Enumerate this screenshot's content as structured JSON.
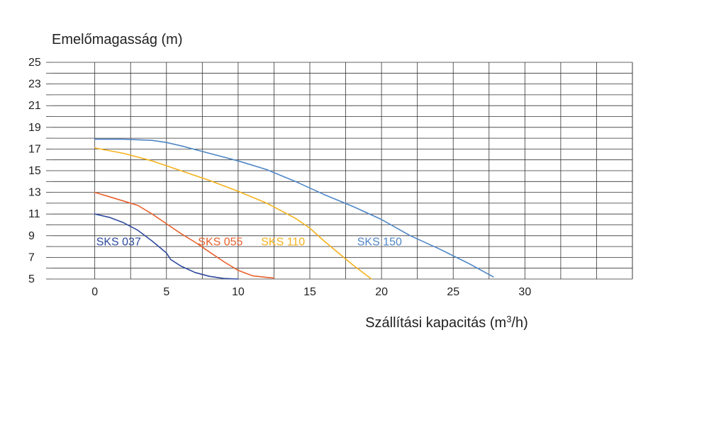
{
  "chart_data": {
    "type": "line",
    "ylabel": "Emelőmagasság (m)",
    "xlabel_prefix": "Szállítási kapacitás (m",
    "xlabel_sup": "3",
    "xlabel_suffix": "/h)",
    "xlim": [
      -3,
      37.5
    ],
    "ylim": [
      5,
      25
    ],
    "x_ticks": [
      0,
      5,
      10,
      15,
      20,
      25,
      30
    ],
    "y_ticks": [
      5,
      7,
      9,
      11,
      13,
      15,
      17,
      19,
      21,
      23,
      25
    ],
    "grid": true,
    "series": [
      {
        "name": "SKS 037",
        "color": "#2e4a9e",
        "label_at": [
          0.1,
          8.5
        ],
        "x": [
          0,
          1,
          2,
          3,
          4,
          5,
          5.3,
          6,
          7,
          8,
          9,
          10
        ],
        "y": [
          11,
          10.7,
          10.2,
          9.5,
          8.5,
          7.4,
          6.8,
          6.2,
          5.6,
          5.25,
          5.05,
          5
        ]
      },
      {
        "name": "SKS 055",
        "color": "#e8602c",
        "label_at": [
          7.2,
          8.5
        ],
        "x": [
          0,
          1,
          2,
          3,
          4,
          5,
          6,
          7,
          8,
          9,
          10,
          11,
          12,
          12.5
        ],
        "y": [
          13,
          12.6,
          12.2,
          11.8,
          11,
          10.1,
          9.2,
          8.4,
          7.5,
          6.6,
          5.8,
          5.3,
          5.15,
          5.1
        ]
      },
      {
        "name": "SKS 110",
        "color": "#f5b21c",
        "label_at": [
          11.6,
          8.5
        ],
        "x": [
          0,
          2,
          4,
          6,
          8,
          10,
          12,
          14,
          15,
          16,
          17,
          18,
          19,
          19.3
        ],
        "y": [
          17.1,
          16.6,
          15.9,
          15,
          14.1,
          13.1,
          12,
          10.6,
          9.7,
          8.5,
          7.4,
          6.3,
          5.3,
          5
        ]
      },
      {
        "name": "SKS 150",
        "color": "#4f86c6",
        "label_at": [
          18.3,
          8.5
        ],
        "x": [
          0,
          2,
          4,
          5,
          6,
          8,
          10,
          12,
          14,
          16,
          18,
          20,
          22,
          24,
          26,
          27.8
        ],
        "y": [
          17.9,
          17.9,
          17.8,
          17.6,
          17.3,
          16.6,
          15.9,
          15.1,
          14,
          12.8,
          11.7,
          10.5,
          9,
          7.8,
          6.5,
          5.2
        ]
      }
    ]
  }
}
